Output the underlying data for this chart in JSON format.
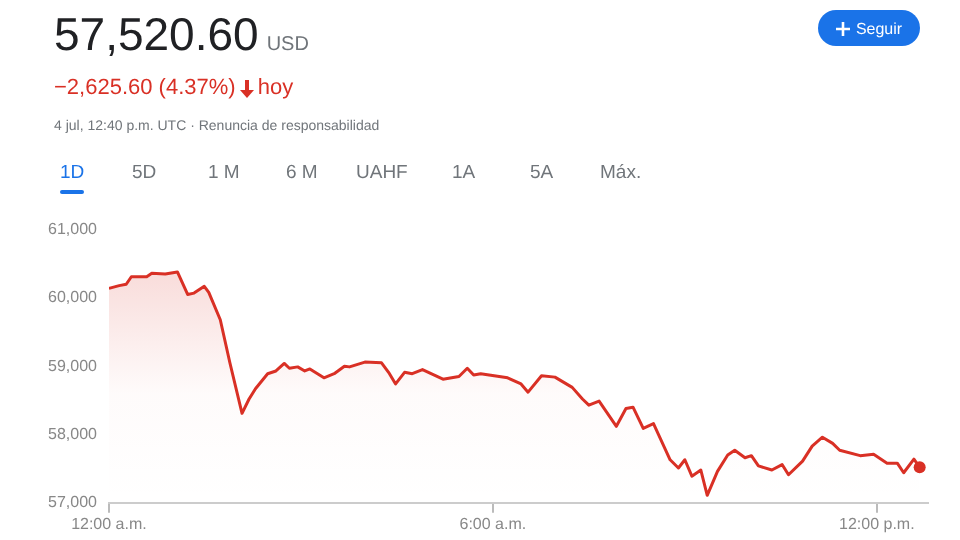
{
  "chart_data": {
    "type": "area",
    "title": "57,520.60",
    "subtitle": "4 jul, 12:40 p.m. UTC · Renuncia de responsabilidad",
    "annotations": [
      "USD",
      "−2,625.60 (4.37%)",
      "hoy",
      "Seguir",
      "1D",
      "5D",
      "1 M",
      "6 M",
      "UAHF",
      "1A",
      "5A",
      "Máx."
    ],
    "x": [
      0,
      0.16,
      0.27,
      0.35,
      0.59,
      0.67,
      0.88,
      1.07,
      1.23,
      1.33,
      1.49,
      1.56,
      1.74,
      1.89,
      2.08,
      2.19,
      2.29,
      2.48,
      2.61,
      2.74,
      2.82,
      2.95,
      3.06,
      3.14,
      3.36,
      3.52,
      3.68,
      3.76,
      4.0,
      4.26,
      4.37,
      4.48,
      4.62,
      4.74,
      4.9,
      5.22,
      5.47,
      5.6,
      5.7,
      5.81,
      6.23,
      6.44,
      6.55,
      6.76,
      6.97,
      7.24,
      7.4,
      7.5,
      7.66,
      7.93,
      8.08,
      8.19,
      8.35,
      8.51,
      8.77,
      8.9,
      9.0,
      9.11,
      9.25,
      9.35,
      9.51,
      9.67,
      9.78,
      9.94,
      10.04,
      10.15,
      10.36,
      10.52,
      10.62,
      10.84,
      10.99,
      11.15,
      11.31,
      11.42,
      11.74,
      11.95,
      12.16,
      12.32,
      12.42,
      12.58,
      12.67
    ],
    "series": [
      {
        "color": "#d93025",
        "values": [
          60140,
          60180,
          60200,
          60310,
          60310,
          60360,
          60350,
          60380,
          60050,
          60070,
          60170,
          60080,
          59680,
          59050,
          58310,
          58520,
          58670,
          58890,
          58930,
          59040,
          58970,
          58990,
          58930,
          58960,
          58830,
          58890,
          59000,
          58990,
          59060,
          59050,
          58910,
          58740,
          58910,
          58890,
          58950,
          58810,
          58850,
          58970,
          58870,
          58890,
          58830,
          58740,
          58620,
          58860,
          58840,
          58690,
          58520,
          58430,
          58490,
          58120,
          58380,
          58400,
          58090,
          58160,
          57630,
          57510,
          57630,
          57390,
          57480,
          57110,
          57460,
          57700,
          57770,
          57660,
          57690,
          57540,
          57480,
          57560,
          57410,
          57610,
          57830,
          57960,
          57870,
          57770,
          57690,
          57710,
          57580,
          57580,
          57440,
          57640,
          57520.6
        ]
      }
    ],
    "xlim": [
      0,
      12.8
    ],
    "xticks": [
      {
        "value": 0,
        "label": "12:00 a.m."
      },
      {
        "value": 6,
        "label": "6:00 a.m."
      },
      {
        "value": 12,
        "label": "12:00 p.m."
      }
    ],
    "ylim": [
      57000,
      61000
    ],
    "yticks": [
      {
        "value": 57000,
        "label": "57,000"
      },
      {
        "value": 58000,
        "label": "58,000"
      },
      {
        "value": 59000,
        "label": "59,000"
      },
      {
        "value": 60000,
        "label": "60,000"
      },
      {
        "value": 61000,
        "label": "61,000"
      }
    ],
    "grid": false,
    "legend": false,
    "marker": "none",
    "line_style": "solid"
  }
}
